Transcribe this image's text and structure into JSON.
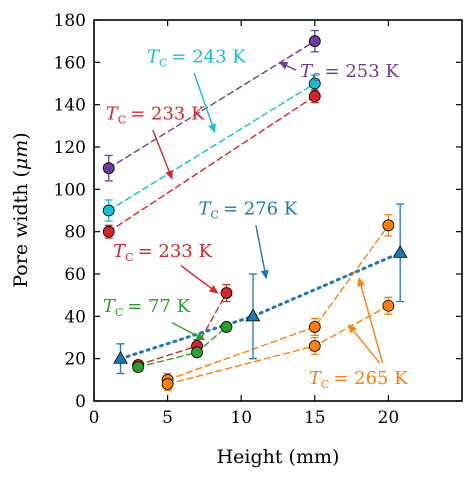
{
  "chart_data": {
    "type": "scatter",
    "xlabel": "Height (mm)",
    "ylabel_text": "Pore width (",
    "ylabel_unit": "μm",
    "ylabel_close": ")",
    "xlim": [
      0,
      25
    ],
    "ylim": [
      0,
      180
    ],
    "x_ticks": [
      0,
      5,
      10,
      15,
      20
    ],
    "y_ticks": [
      0,
      20,
      40,
      60,
      80,
      100,
      120,
      140,
      160,
      180
    ],
    "grid": false,
    "series": [
      {
        "label_prefix": "T",
        "label_sub": "C",
        "label_value": "= 253 K",
        "color": "#6a3d9a",
        "marker": "circle",
        "line": "dashed",
        "x": [
          1,
          15
        ],
        "y": [
          110,
          170
        ],
        "yerr": [
          6,
          5
        ]
      },
      {
        "label_prefix": "T",
        "label_sub": "C",
        "label_value": "= 243 K",
        "color": "#17becf",
        "marker": "circle",
        "line": "dashed",
        "x": [
          1,
          15
        ],
        "y": [
          90,
          150
        ],
        "yerr": [
          5,
          4
        ]
      },
      {
        "label_prefix": "T",
        "label_sub": "C",
        "label_value": "= 233 K",
        "color": "#d62728",
        "marker": "circle",
        "line": "dashed",
        "x": [
          1,
          15
        ],
        "y": [
          80,
          144
        ],
        "yerr": [
          3,
          3
        ]
      },
      {
        "label_prefix": "T",
        "label_sub": "C",
        "label_value": "= 233 K",
        "color": "#d62728",
        "marker": "circle",
        "line": "dashed",
        "x": [
          3,
          7,
          9
        ],
        "y": [
          17,
          26,
          51
        ],
        "yerr": [
          2,
          3,
          4
        ]
      },
      {
        "label_prefix": "T",
        "label_sub": "C",
        "label_value": "= 77 K",
        "color": "#2ca02c",
        "marker": "circle",
        "line": "dashed",
        "x": [
          3,
          7,
          9
        ],
        "y": [
          16,
          23,
          35
        ],
        "yerr": [
          2,
          2,
          2
        ]
      },
      {
        "label_prefix": "T",
        "label_sub": "C",
        "label_value": "= 276 K",
        "color": "#1f77b4",
        "marker": "triangle",
        "line": "dotted",
        "x": [
          1.8,
          10.8,
          20.8
        ],
        "y": [
          20,
          40,
          70
        ],
        "yerr": [
          7,
          20,
          23
        ]
      },
      {
        "label_prefix": "T",
        "label_sub": "C",
        "label_value": "= 265 K",
        "color": "#ff7f0e",
        "marker": "circle",
        "line": "dashed",
        "x": [
          5,
          15,
          20
        ],
        "y": [
          10,
          35,
          83
        ],
        "yerr": [
          3,
          4,
          5
        ]
      },
      {
        "label_prefix": "T",
        "label_sub": "C",
        "label_value": "= 265 K",
        "color": "#ff7f0e",
        "marker": "circle",
        "line": "dashed",
        "x": [
          5,
          15,
          20
        ],
        "y": [
          8,
          26,
          45
        ],
        "yerr": [
          3,
          4,
          4
        ]
      }
    ],
    "annotations": [
      {
        "series": 0,
        "text_x": 14.0,
        "text_y": 153,
        "arrow_to": [
          12.6,
          160
        ],
        "align": "start"
      },
      {
        "series": 1,
        "text_x": 3.6,
        "text_y": 160,
        "arrow_to": [
          8.2,
          127
        ],
        "arrow_from": [
          6.8,
          155
        ],
        "align": "start"
      },
      {
        "series": 2,
        "text_x": 0.8,
        "text_y": 133,
        "arrow_to": [
          5.3,
          105
        ],
        "arrow_from": [
          4.0,
          128
        ],
        "align": "start"
      },
      {
        "series": 3,
        "text_x": 1.3,
        "text_y": 68,
        "arrow_to": [
          8.4,
          51
        ],
        "arrow_from": [
          5.9,
          64
        ],
        "align": "start"
      },
      {
        "series": 4,
        "text_x": 0.6,
        "text_y": 42,
        "arrow_to": [
          7.5,
          29
        ],
        "arrow_from": [
          5.3,
          37
        ],
        "align": "start"
      },
      {
        "series": 5,
        "text_x": 7.1,
        "text_y": 88,
        "arrow_to": [
          11.7,
          58
        ],
        "arrow_from": [
          11.0,
          83
        ],
        "align": "start"
      },
      {
        "series": 6,
        "text_x": 14.6,
        "text_y": 8,
        "arrow_to": [
          17.3,
          36
        ],
        "arrow_from": [
          19.4,
          18
        ],
        "align": "start"
      },
      {
        "series": 7,
        "text_x": 14.6,
        "text_y": 8,
        "arrow_to": [
          18.0,
          58
        ],
        "arrow_from": [
          19.6,
          18
        ],
        "align": "start"
      }
    ]
  }
}
